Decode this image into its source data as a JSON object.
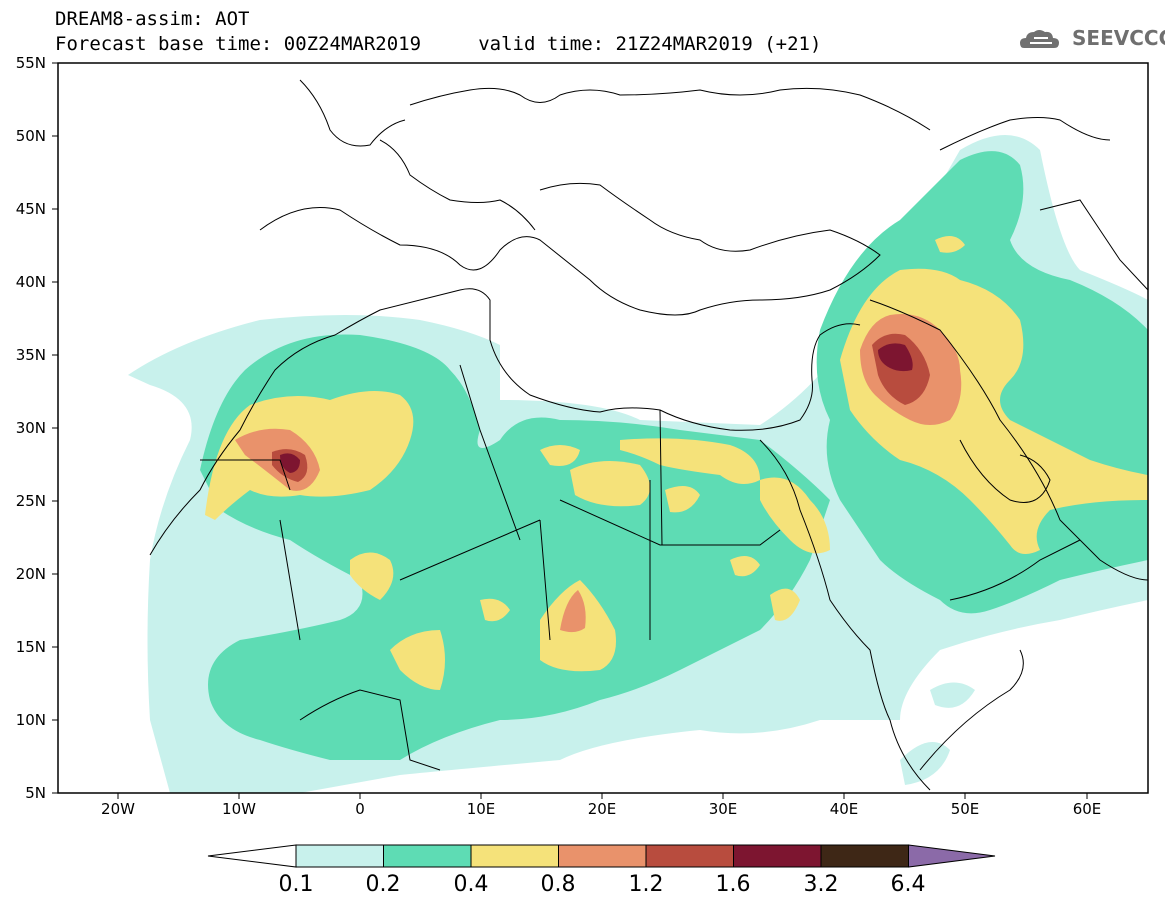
{
  "header": {
    "line1": "DREAM8-assim: AOT",
    "line2": "Forecast base time: 00Z24MAR2019     valid time: 21Z24MAR2019 (+21)"
  },
  "logo": {
    "text": "SEEVCCC",
    "icon": "cloud-icon"
  },
  "axes": {
    "lat_labels": [
      "55N",
      "50N",
      "45N",
      "40N",
      "35N",
      "30N",
      "25N",
      "20N",
      "15N",
      "10N",
      "5N"
    ],
    "lon_labels": [
      "20W",
      "10W",
      "0",
      "10E",
      "20E",
      "30E",
      "40E",
      "50E",
      "60E"
    ]
  },
  "colorbar": {
    "labels": [
      "0.1",
      "0.2",
      "0.4",
      "0.8",
      "1.2",
      "1.6",
      "3.2",
      "6.4"
    ],
    "colors": [
      "#ffffff",
      "#c8f1ec",
      "#5edcb4",
      "#f5e27a",
      "#e9926b",
      "#b84c3e",
      "#7d1530",
      "#3e2716",
      "#8b6aa8"
    ]
  },
  "colors": {
    "land_line": "#000000",
    "background": "#ffffff"
  }
}
